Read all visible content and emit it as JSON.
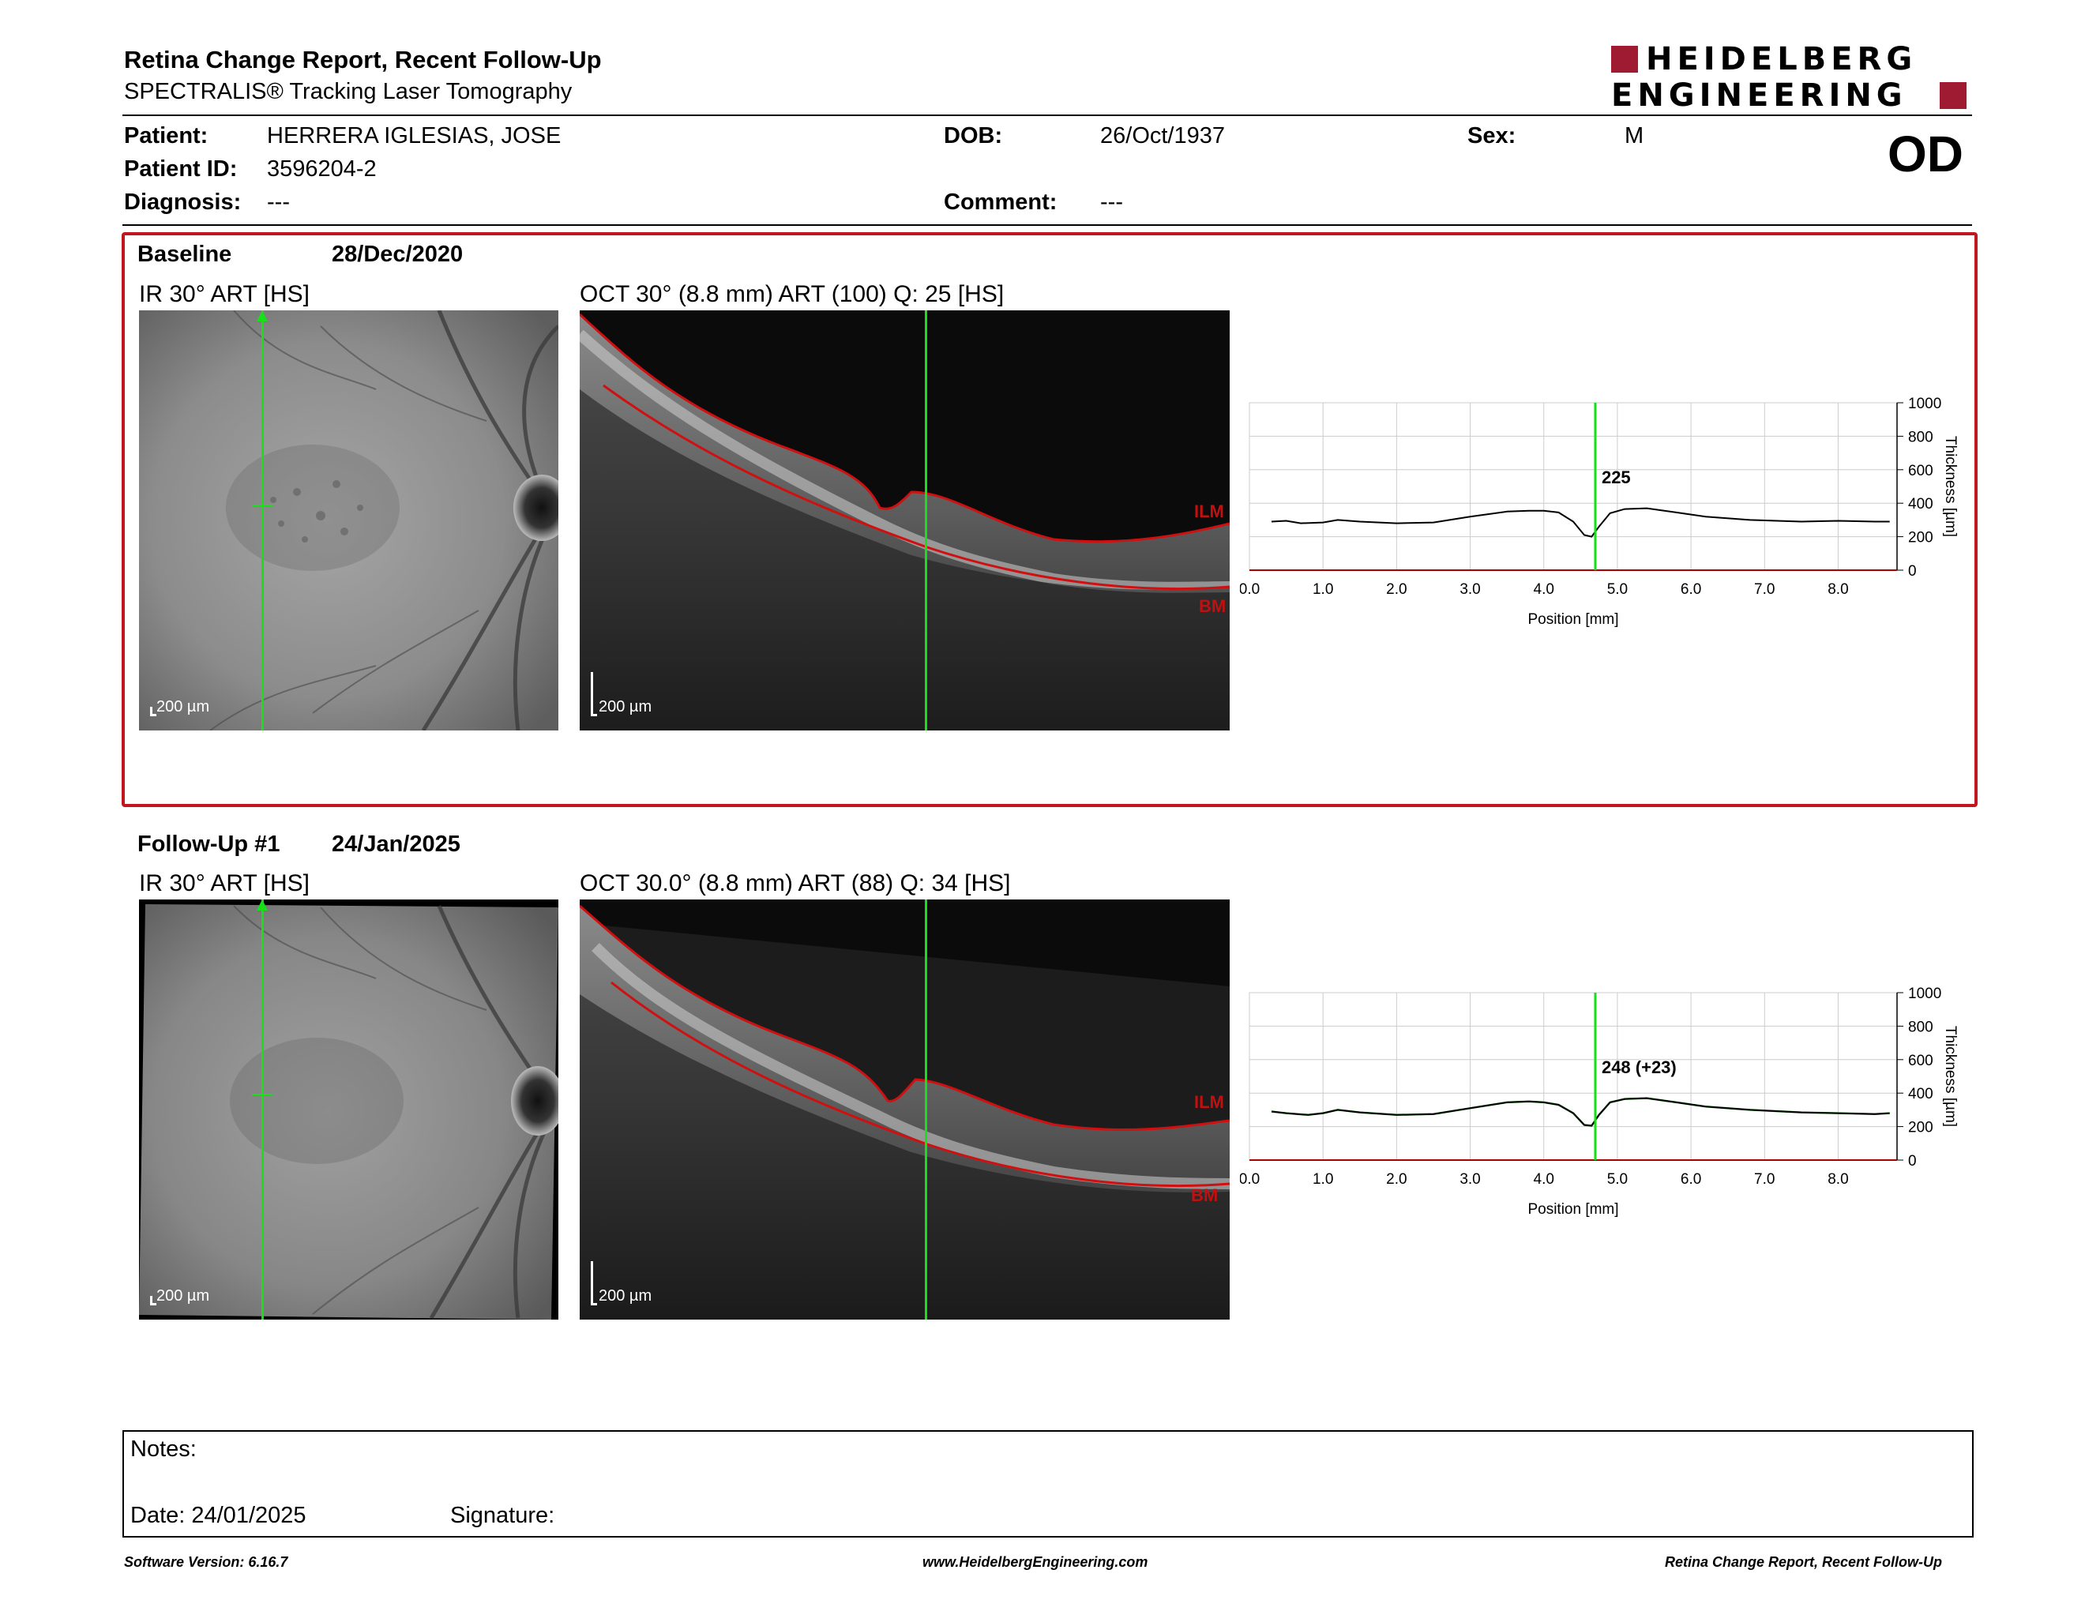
{
  "header": {
    "title": "Retina Change Report, Recent Follow-Up",
    "subtitle": "SPECTRALIS® Tracking Laser Tomography",
    "logo_line1": "HEIDELBERG",
    "logo_line2": "ENGINEERING",
    "eye": "OD"
  },
  "patient": {
    "patient_label": "Patient:",
    "patient_value": "HERRERA IGLESIAS, JOSE",
    "id_label": "Patient ID:",
    "id_value": "3596204-2",
    "diag_label": "Diagnosis:",
    "diag_value": "---",
    "dob_label": "DOB:",
    "dob_value": "26/Oct/1937",
    "comment_label": "Comment:",
    "comment_value": "---",
    "sex_label": "Sex:",
    "sex_value": "M"
  },
  "baseline": {
    "label": "Baseline",
    "date": "28/Dec/2020",
    "ir_title": "IR 30° ART [HS]",
    "oct_title": "OCT 30° (8.8 mm) ART (100) Q: 25 [HS]",
    "scale": "200 µm",
    "ilm": "ILM",
    "bm": "BM"
  },
  "followup": {
    "label": "Follow-Up #1",
    "date": "24/Jan/2025",
    "ir_title": "IR 30° ART [HS]",
    "oct_title": "OCT 30.0° (8.8 mm) ART (88) Q: 34 [HS]",
    "scale": "200 µm",
    "ilm": "ILM",
    "bm": "BM"
  },
  "chart_data": [
    {
      "type": "line",
      "xlabel": "Position [mm]",
      "ylabel": "Thickness [µm]",
      "xlim": [
        0,
        8.8
      ],
      "ylim": [
        0,
        1000
      ],
      "xticks": [
        "0.0",
        "1.0",
        "2.0",
        "3.0",
        "4.0",
        "5.0",
        "6.0",
        "7.0",
        "8.0"
      ],
      "yticks": [
        "0",
        "200",
        "400",
        "600",
        "800",
        "1000"
      ],
      "cursor_x": 4.7,
      "cursor_label": "225",
      "grid": true,
      "series": [
        {
          "x": [
            0.3,
            0.5,
            0.7,
            1.0,
            1.2,
            1.5,
            2.0,
            2.5,
            3.0,
            3.5,
            3.8,
            4.0,
            4.2,
            4.4,
            4.55,
            4.65,
            4.75,
            4.9,
            5.1,
            5.4,
            5.8,
            6.2,
            6.8,
            7.5,
            8.0,
            8.5,
            8.7
          ],
          "y": [
            290,
            295,
            280,
            285,
            300,
            290,
            280,
            285,
            320,
            350,
            355,
            355,
            345,
            290,
            210,
            200,
            260,
            340,
            365,
            370,
            345,
            320,
            300,
            290,
            295,
            290,
            290
          ]
        }
      ]
    },
    {
      "type": "line",
      "xlabel": "Position [mm]",
      "ylabel": "Thickness [µm]",
      "xlim": [
        0,
        8.8
      ],
      "ylim": [
        0,
        1000
      ],
      "xticks": [
        "0.0",
        "1.0",
        "2.0",
        "3.0",
        "4.0",
        "5.0",
        "6.0",
        "7.0",
        "8.0"
      ],
      "yticks": [
        "0",
        "200",
        "400",
        "600",
        "800",
        "1000"
      ],
      "cursor_x": 4.7,
      "cursor_label": "248 (+23)",
      "grid": true,
      "series": [
        {
          "x": [
            0.3,
            0.5,
            0.8,
            1.0,
            1.2,
            1.5,
            2.0,
            2.5,
            3.0,
            3.5,
            3.8,
            4.0,
            4.2,
            4.4,
            4.55,
            4.65,
            4.75,
            4.9,
            5.1,
            5.4,
            5.8,
            6.2,
            6.8,
            7.5,
            8.0,
            8.5,
            8.7
          ],
          "y": [
            290,
            280,
            270,
            280,
            300,
            285,
            270,
            275,
            310,
            345,
            350,
            345,
            330,
            280,
            210,
            205,
            270,
            345,
            365,
            370,
            345,
            320,
            300,
            285,
            280,
            275,
            280
          ]
        }
      ]
    }
  ],
  "notes": {
    "notes_label": "Notes:",
    "date_label": "Date: 24/01/2025",
    "signature_label": "Signature:"
  },
  "footer": {
    "left": "Software Version: 6.16.7",
    "center": "www.HeidelbergEngineering.com",
    "right": "Retina Change Report, Recent Follow-Up"
  },
  "colors": {
    "accent_red": "#c0161e",
    "cursor_green": "#18e018",
    "logo_red": "#9e1b32"
  }
}
